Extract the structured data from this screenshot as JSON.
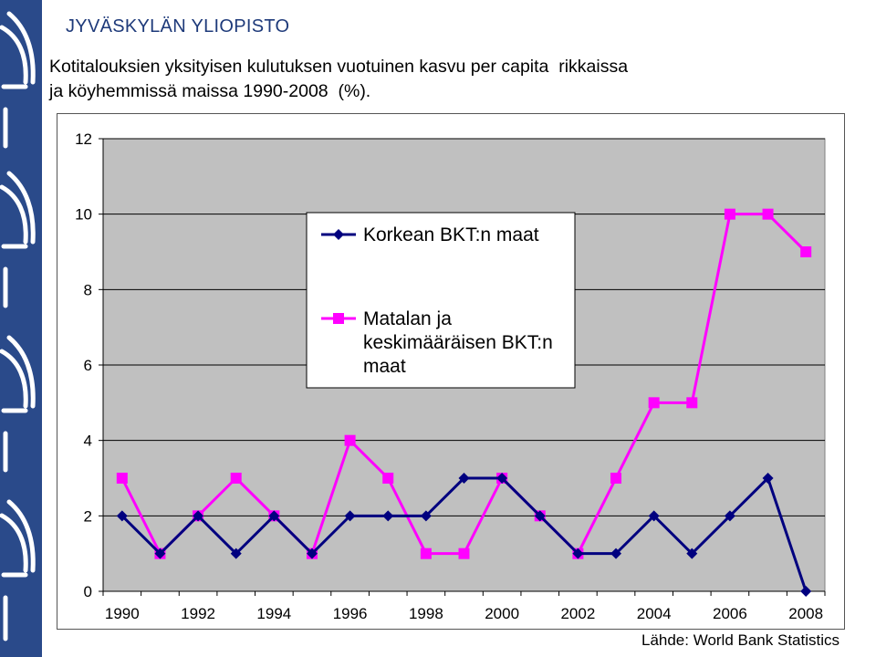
{
  "header": {
    "university": "JYVÄSKYLÄN YLIOPISTO",
    "title_line1": "Kotitalouksien yksityisen kulutuksen vuotuinen kasvu per capita  rikkaissa",
    "title_line2": "ja köyhemmissä maissa 1990-2008  (%)."
  },
  "footer": {
    "source": "Lähde: World Bank Statistics"
  },
  "colors": {
    "sidebar": "#2a4a8a",
    "plot_background": "#c0c0c0",
    "series_high": "#00007f",
    "series_low": "#ff00ff"
  },
  "chart_data": {
    "type": "line",
    "x": [
      1990,
      1991,
      1992,
      1993,
      1994,
      1995,
      1996,
      1997,
      1998,
      1999,
      2000,
      2001,
      2002,
      2003,
      2004,
      2005,
      2006,
      2007,
      2008
    ],
    "xticks": [
      "1990",
      "1992",
      "1994",
      "1996",
      "1998",
      "2000",
      "2002",
      "2004",
      "2006",
      "2008"
    ],
    "yticks": [
      "0",
      "2",
      "4",
      "6",
      "8",
      "10",
      "12"
    ],
    "ylim": [
      0,
      12
    ],
    "grid": true,
    "legend_position": "upper-center",
    "series": [
      {
        "name": "Korkean BKT:n maat",
        "name_lines": [
          "Korkean BKT:n maat"
        ],
        "marker": "diamond",
        "values": [
          2,
          1,
          2,
          1,
          2,
          1,
          2,
          2,
          2,
          3,
          3,
          2,
          1,
          1,
          2,
          1,
          2,
          3,
          0
        ]
      },
      {
        "name": "Matalan ja keskimääräisen BKT:n maat",
        "name_lines": [
          "Matalan ja",
          "keskimääräisen BKT:n",
          "maat"
        ],
        "marker": "square",
        "values": [
          3,
          1,
          2,
          3,
          2,
          1,
          4,
          3,
          1,
          1,
          3,
          2,
          1,
          3,
          5,
          5,
          10,
          10,
          9
        ]
      }
    ]
  }
}
